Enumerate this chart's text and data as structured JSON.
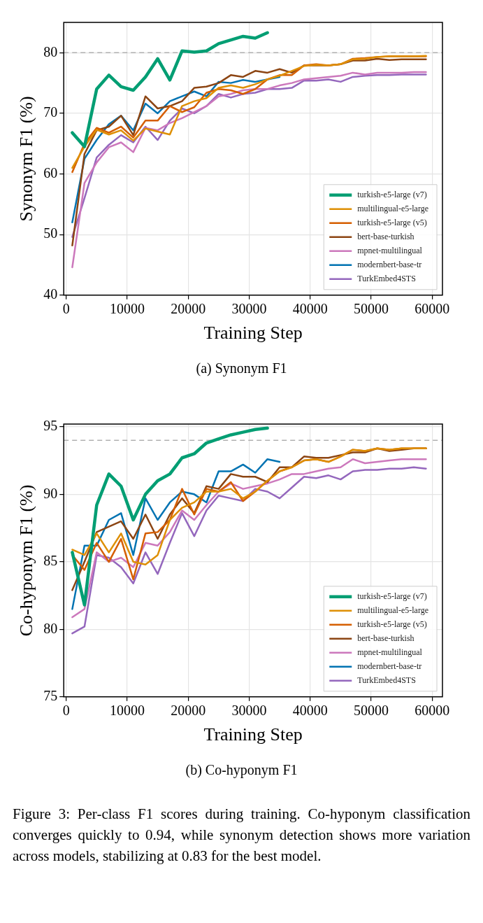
{
  "chart_data": [
    {
      "type": "line",
      "xlabel": "Training Step",
      "ylabel": "Synonym F1 (%)",
      "annotations": [
        "(a) Synonym F1"
      ],
      "x": [
        1000,
        3000,
        5000,
        7000,
        9000,
        11000,
        13000,
        15000,
        17000,
        19000,
        21000,
        23000,
        25000,
        27000,
        29000,
        31000,
        33000,
        35000,
        37000,
        39000,
        41000,
        43000,
        45000,
        47000,
        49000,
        51000,
        53000,
        55000,
        57000,
        59000
      ],
      "xlim": [
        -400,
        61700
      ],
      "xticks": [
        0,
        10000,
        20000,
        30000,
        40000,
        50000,
        60000
      ],
      "ylim": [
        40,
        85
      ],
      "yticks": [
        40,
        50,
        60,
        70,
        80
      ],
      "grid": true,
      "legend": "bottom right",
      "marker": "none",
      "line_style": "solid",
      "ref_lines": [
        {
          "axis": "y",
          "value": 80,
          "color": "#b0b0b0",
          "line_style": "dashed"
        }
      ],
      "series": [
        {
          "name": "turkish-e5-large (v7)",
          "color": "#029e73",
          "values": [
            66.8,
            64.5,
            74,
            76.3,
            74.4,
            73.8,
            76,
            79,
            75.5,
            80.3,
            80.1,
            80.3,
            81.5,
            82.1,
            82.7,
            82.4,
            83.3,
            null,
            null,
            null,
            null,
            null,
            null,
            null,
            null,
            null,
            null,
            null,
            null,
            null
          ]
        },
        {
          "name": "multilingual-e5-large",
          "color": "#de8f05",
          "values": [
            61,
            64.5,
            67.3,
            66.5,
            67.2,
            65.5,
            67.5,
            67,
            66.5,
            71.2,
            72,
            72.5,
            74.2,
            74.6,
            74.2,
            74.8,
            75.6,
            76.2,
            77,
            77.8,
            78,
            77.9,
            78.1,
            78.9,
            79,
            79.3,
            79.4,
            79.4,
            79.4,
            79.5
          ]
        },
        {
          "name": "turkish-e5-large (v5)",
          "color": "#d55e00",
          "values": [
            60.3,
            65,
            67.6,
            66.8,
            67.8,
            66,
            68.8,
            68.8,
            71.2,
            70.2,
            71,
            73.4,
            74,
            73.8,
            73.2,
            74,
            75.6,
            76.3,
            76.3,
            77.9,
            78.1,
            77.9,
            78.1,
            79,
            79.1,
            79.3,
            79.4,
            79.4,
            79.4,
            79.4
          ]
        },
        {
          "name": "bert-base-turkish",
          "color": "#8c4513",
          "values": [
            48.2,
            63.3,
            67.2,
            67.8,
            69.6,
            66.4,
            72.8,
            70.8,
            71.2,
            72,
            74.2,
            74.4,
            75,
            76.3,
            76,
            77,
            76.7,
            77.3,
            76.7,
            77.9,
            77.9,
            77.9,
            78.1,
            78.7,
            78.7,
            79,
            78.8,
            78.9,
            78.9,
            78.9
          ]
        },
        {
          "name": "mpnet-multilingual",
          "color": "#cc78bc",
          "values": [
            44.6,
            58.5,
            61.9,
            64.4,
            65.2,
            63.6,
            67.6,
            67.2,
            68.4,
            69.2,
            70.2,
            71.2,
            72.8,
            73.2,
            73.8,
            74,
            74,
            74.6,
            75,
            75.6,
            75.8,
            76,
            76.2,
            76.7,
            76.4,
            76.7,
            76.7,
            76.7,
            76.8,
            76.8
          ]
        },
        {
          "name": "modernbert-base-tr",
          "color": "#0173b2",
          "values": [
            52,
            62.5,
            65.6,
            68.2,
            69.6,
            67.2,
            71.6,
            70,
            72,
            72.8,
            73.6,
            72.8,
            75.2,
            75,
            75.5,
            75.2,
            75.6,
            76,
            null,
            null,
            null,
            null,
            null,
            null,
            null,
            null,
            null,
            null,
            null,
            null
          ]
        },
        {
          "name": "TurkEmbed4STS",
          "color": "#9467bd",
          "values": [
            49.6,
            56,
            62.7,
            64.8,
            66.4,
            65.2,
            67.8,
            65.6,
            68.8,
            70.8,
            70,
            71.2,
            73.2,
            72.6,
            73.2,
            73.4,
            74,
            74,
            74.2,
            75.4,
            75.4,
            75.6,
            75.2,
            76,
            76.2,
            76.3,
            76.3,
            76.4,
            76.4,
            76.4
          ]
        }
      ]
    },
    {
      "type": "line",
      "xlabel": "Training Step",
      "ylabel": "Co-hyponym F1 (%)",
      "annotations": [
        "(b) Co-hyponym F1",
        "Figure 3: Per-class F1 scores during training. Co-hyponym classification converges quickly to 0.94, while synonym detection shows more variation across models, stabilizing at 0.83 for the best model."
      ],
      "x": [
        1000,
        3000,
        5000,
        7000,
        9000,
        11000,
        13000,
        15000,
        17000,
        19000,
        21000,
        23000,
        25000,
        27000,
        29000,
        31000,
        33000,
        35000,
        37000,
        39000,
        41000,
        43000,
        45000,
        47000,
        49000,
        51000,
        53000,
        55000,
        57000,
        59000
      ],
      "xlim": [
        -400,
        61700
      ],
      "xticks": [
        0,
        10000,
        20000,
        30000,
        40000,
        50000,
        60000
      ],
      "ylim": [
        75,
        95.2
      ],
      "yticks": [
        75,
        80,
        85,
        90,
        95
      ],
      "grid": true,
      "legend": "bottom right",
      "marker": "none",
      "line_style": "solid",
      "ref_lines": [
        {
          "axis": "y",
          "value": 94,
          "color": "#b0b0b0",
          "line_style": "dashed"
        }
      ],
      "series": [
        {
          "name": "turkish-e5-large (v7)",
          "color": "#029e73",
          "values": [
            85.7,
            81.8,
            89.2,
            91.5,
            90.6,
            88.1,
            90,
            91,
            91.5,
            92.7,
            93,
            93.8,
            94.1,
            94.4,
            94.6,
            94.8,
            94.9,
            null,
            null,
            null,
            null,
            null,
            null,
            null,
            null,
            null,
            null,
            null,
            null,
            null
          ]
        },
        {
          "name": "multilingual-e5-large",
          "color": "#de8f05",
          "values": [
            85.9,
            85.5,
            87.1,
            85.7,
            87.1,
            85,
            84.8,
            85.5,
            88.1,
            89,
            89.4,
            90.2,
            90.2,
            90.4,
            89.7,
            90.2,
            91,
            91.7,
            92,
            92.5,
            92.6,
            92.4,
            92.8,
            93.3,
            93.2,
            93.4,
            93.3,
            93.4,
            93.4,
            93.4
          ]
        },
        {
          "name": "turkish-e5-large (v5)",
          "color": "#d55e00",
          "values": [
            85.5,
            84.4,
            86.4,
            85,
            86.7,
            83.7,
            87.1,
            87.2,
            88.1,
            90.4,
            88.5,
            90.4,
            90.2,
            90.9,
            89.5,
            90.2,
            91,
            91.7,
            92,
            92.5,
            92.6,
            92.4,
            92.8,
            93.3,
            93.2,
            93.4,
            93.3,
            93.4,
            93.4,
            93.4
          ]
        },
        {
          "name": "bert-base-turkish",
          "color": "#8c4513",
          "values": [
            82.9,
            85,
            87.2,
            87.6,
            88,
            86.7,
            88.5,
            86.7,
            88.5,
            89.7,
            88.6,
            90.6,
            90.4,
            91.5,
            91.3,
            91.3,
            90.9,
            92,
            92,
            92.8,
            92.7,
            92.7,
            92.9,
            93.1,
            93.1,
            93.4,
            93.2,
            93.3,
            93.4,
            93.4
          ]
        },
        {
          "name": "mpnet-multilingual",
          "color": "#cc78bc",
          "values": [
            80.9,
            81.5,
            85.7,
            85,
            85.3,
            84.6,
            86.4,
            86.2,
            87.2,
            88.8,
            88.1,
            89.2,
            90.2,
            90.8,
            90.4,
            90.6,
            90.8,
            91.1,
            91.5,
            91.5,
            91.7,
            91.9,
            92,
            92.6,
            92.3,
            92.4,
            92.5,
            92.6,
            92.6,
            92.6
          ]
        },
        {
          "name": "modernbert-base-tr",
          "color": "#0173b2",
          "values": [
            81.5,
            86.2,
            86.2,
            88.1,
            88.6,
            85.5,
            89.7,
            88.1,
            89.4,
            90.2,
            90,
            89.4,
            91.7,
            91.7,
            92.2,
            91.6,
            92.6,
            92.4,
            null,
            null,
            null,
            null,
            null,
            null,
            null,
            null,
            null,
            null,
            null,
            null
          ]
        },
        {
          "name": "TurkEmbed4STS",
          "color": "#9467bd",
          "values": [
            79.7,
            80.2,
            85.5,
            85.3,
            84.6,
            83.4,
            85.7,
            84.1,
            86.4,
            88.6,
            86.9,
            88.8,
            89.9,
            89.7,
            89.5,
            90.4,
            90.2,
            89.7,
            90.5,
            91.3,
            91.2,
            91.4,
            91.1,
            91.7,
            91.8,
            91.8,
            91.9,
            91.9,
            92,
            91.9
          ]
        }
      ]
    }
  ]
}
